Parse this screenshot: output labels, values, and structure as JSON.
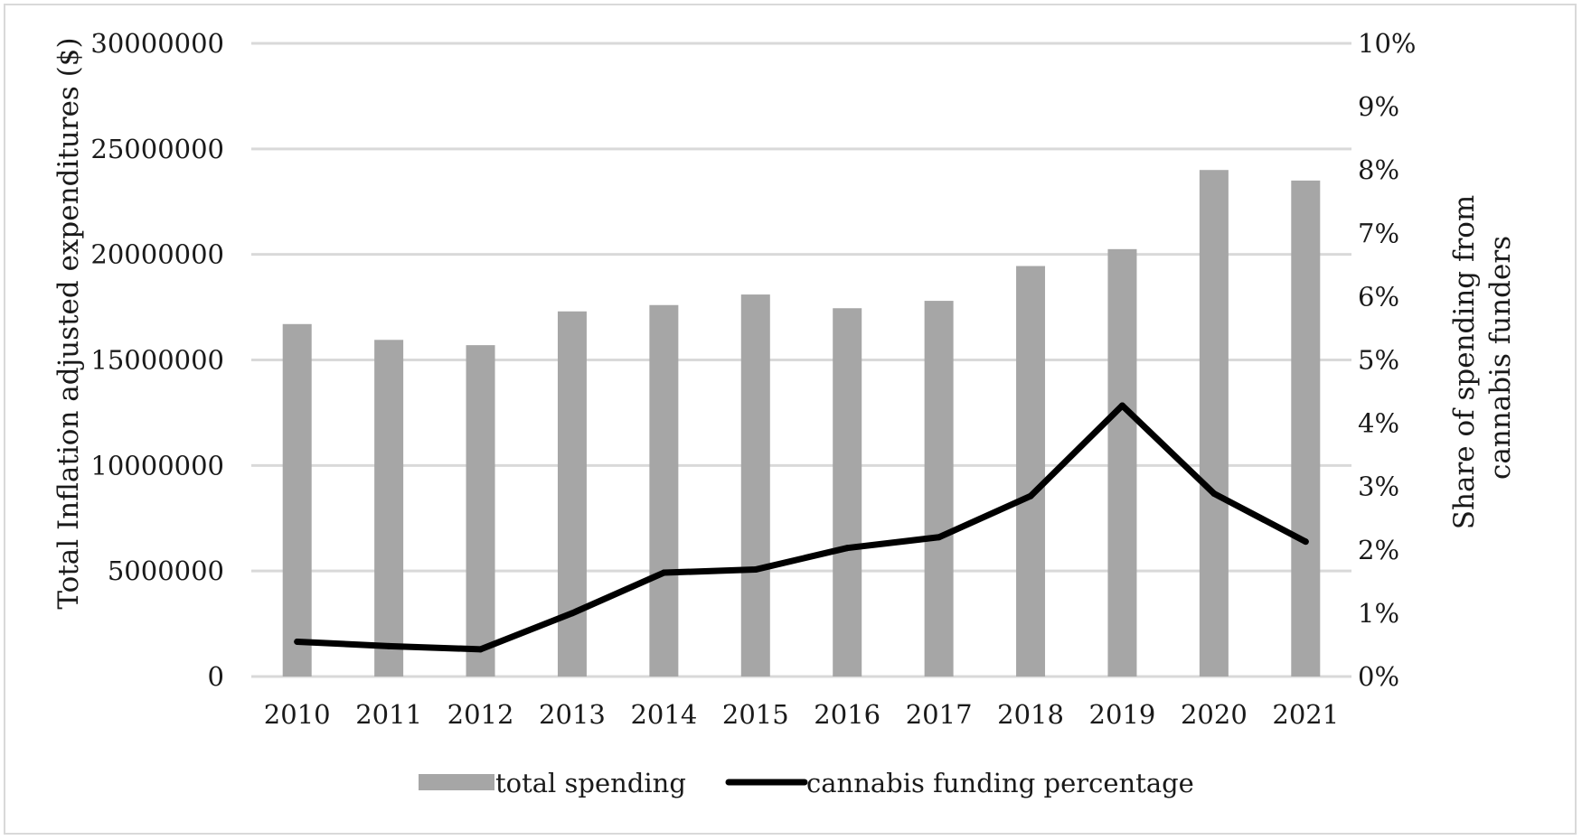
{
  "chart_data": {
    "type": "bar",
    "categories": [
      "2010",
      "2011",
      "2012",
      "2013",
      "2014",
      "2015",
      "2016",
      "2017",
      "2018",
      "2019",
      "2020",
      "2021"
    ],
    "series": [
      {
        "name": "total spending",
        "type": "bar",
        "axis": "left",
        "color": "#a6a6a6",
        "values": [
          16700000,
          15950000,
          15700000,
          17300000,
          17600000,
          18100000,
          17450000,
          17800000,
          19450000,
          20250000,
          24000000,
          23500000
        ]
      },
      {
        "name": "cannabis funding percentage",
        "type": "line",
        "axis": "right",
        "color": "#000000",
        "values": [
          0.0055,
          0.0048,
          0.0043,
          0.01,
          0.0164,
          0.0169,
          0.0203,
          0.022,
          0.0285,
          0.0428,
          0.0289,
          0.0213
        ]
      }
    ],
    "ylabel": "Total Inflation adjusted expenditures ($)",
    "y2label_lines": [
      "Share of spending from",
      "cannabis funders"
    ],
    "ylim": [
      0,
      30000000
    ],
    "y2lim": [
      0,
      0.1
    ],
    "y_ticks": [
      "0",
      "5000000",
      "10000000",
      "15000000",
      "20000000",
      "25000000",
      "30000000"
    ],
    "y2_ticks": [
      "0%",
      "1%",
      "2%",
      "3%",
      "4%",
      "5%",
      "6%",
      "7%",
      "8%",
      "9%",
      "10%"
    ],
    "grid": true,
    "legend": "bottom"
  }
}
